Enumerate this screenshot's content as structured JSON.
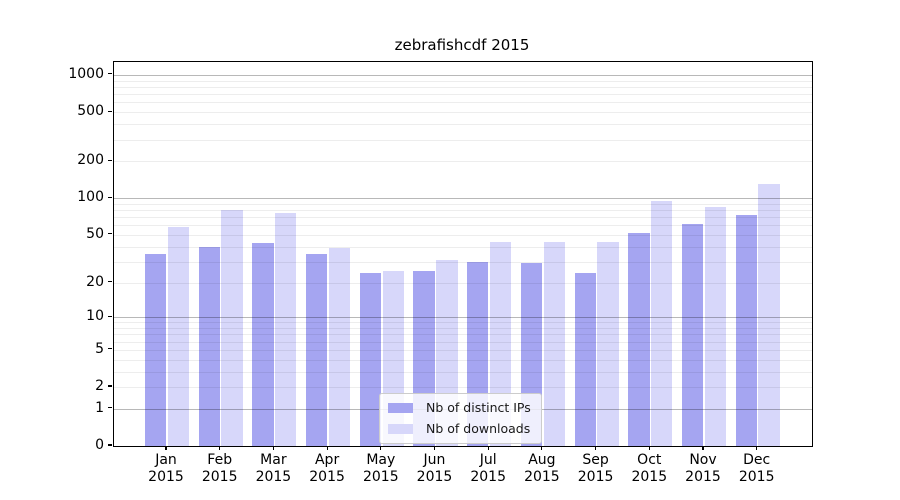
{
  "title": "zebrafishcdf 2015",
  "legend": {
    "ips_label": "Nb of distinct IPs",
    "downloads_label": "Nb of downloads"
  },
  "colors": {
    "distinct_ips_bar": "#a5a5f1",
    "downloads_bar": "#d7d7fa",
    "major_gridline": "#b7b7b7",
    "minor_gridline": "#ececec",
    "spine": "#000000"
  },
  "chart_data": {
    "type": "bar",
    "title": "zebrafishcdf 2015",
    "categories": [
      "Jan 2015",
      "Feb 2015",
      "Mar 2015",
      "Apr 2015",
      "May 2015",
      "Jun 2015",
      "Jul 2015",
      "Aug 2015",
      "Sep 2015",
      "Oct 2015",
      "Nov 2015",
      "Dec 2015"
    ],
    "series": [
      {
        "name": "Nb of distinct IPs",
        "color": "#a5a5f1",
        "values": [
          35,
          40,
          43,
          35,
          24,
          25,
          30,
          29,
          24,
          52,
          61,
          73
        ]
      },
      {
        "name": "Nb of downloads",
        "color": "#d7d7fa",
        "values": [
          58,
          80,
          75,
          39,
          25,
          31,
          44,
          44,
          44,
          94,
          84,
          130
        ]
      }
    ],
    "xlabel": "",
    "ylabel": "",
    "yscale": "log10(1+v)",
    "yticks": [
      1000,
      500,
      200,
      100,
      50,
      20,
      10,
      5,
      2,
      1,
      0
    ],
    "ylim": [
      0,
      1270
    ],
    "grid": "horizontal major at powers of 10 (dark) and log-decade minors (light), drawn over bars",
    "legend_position": "lower center inside plot"
  }
}
